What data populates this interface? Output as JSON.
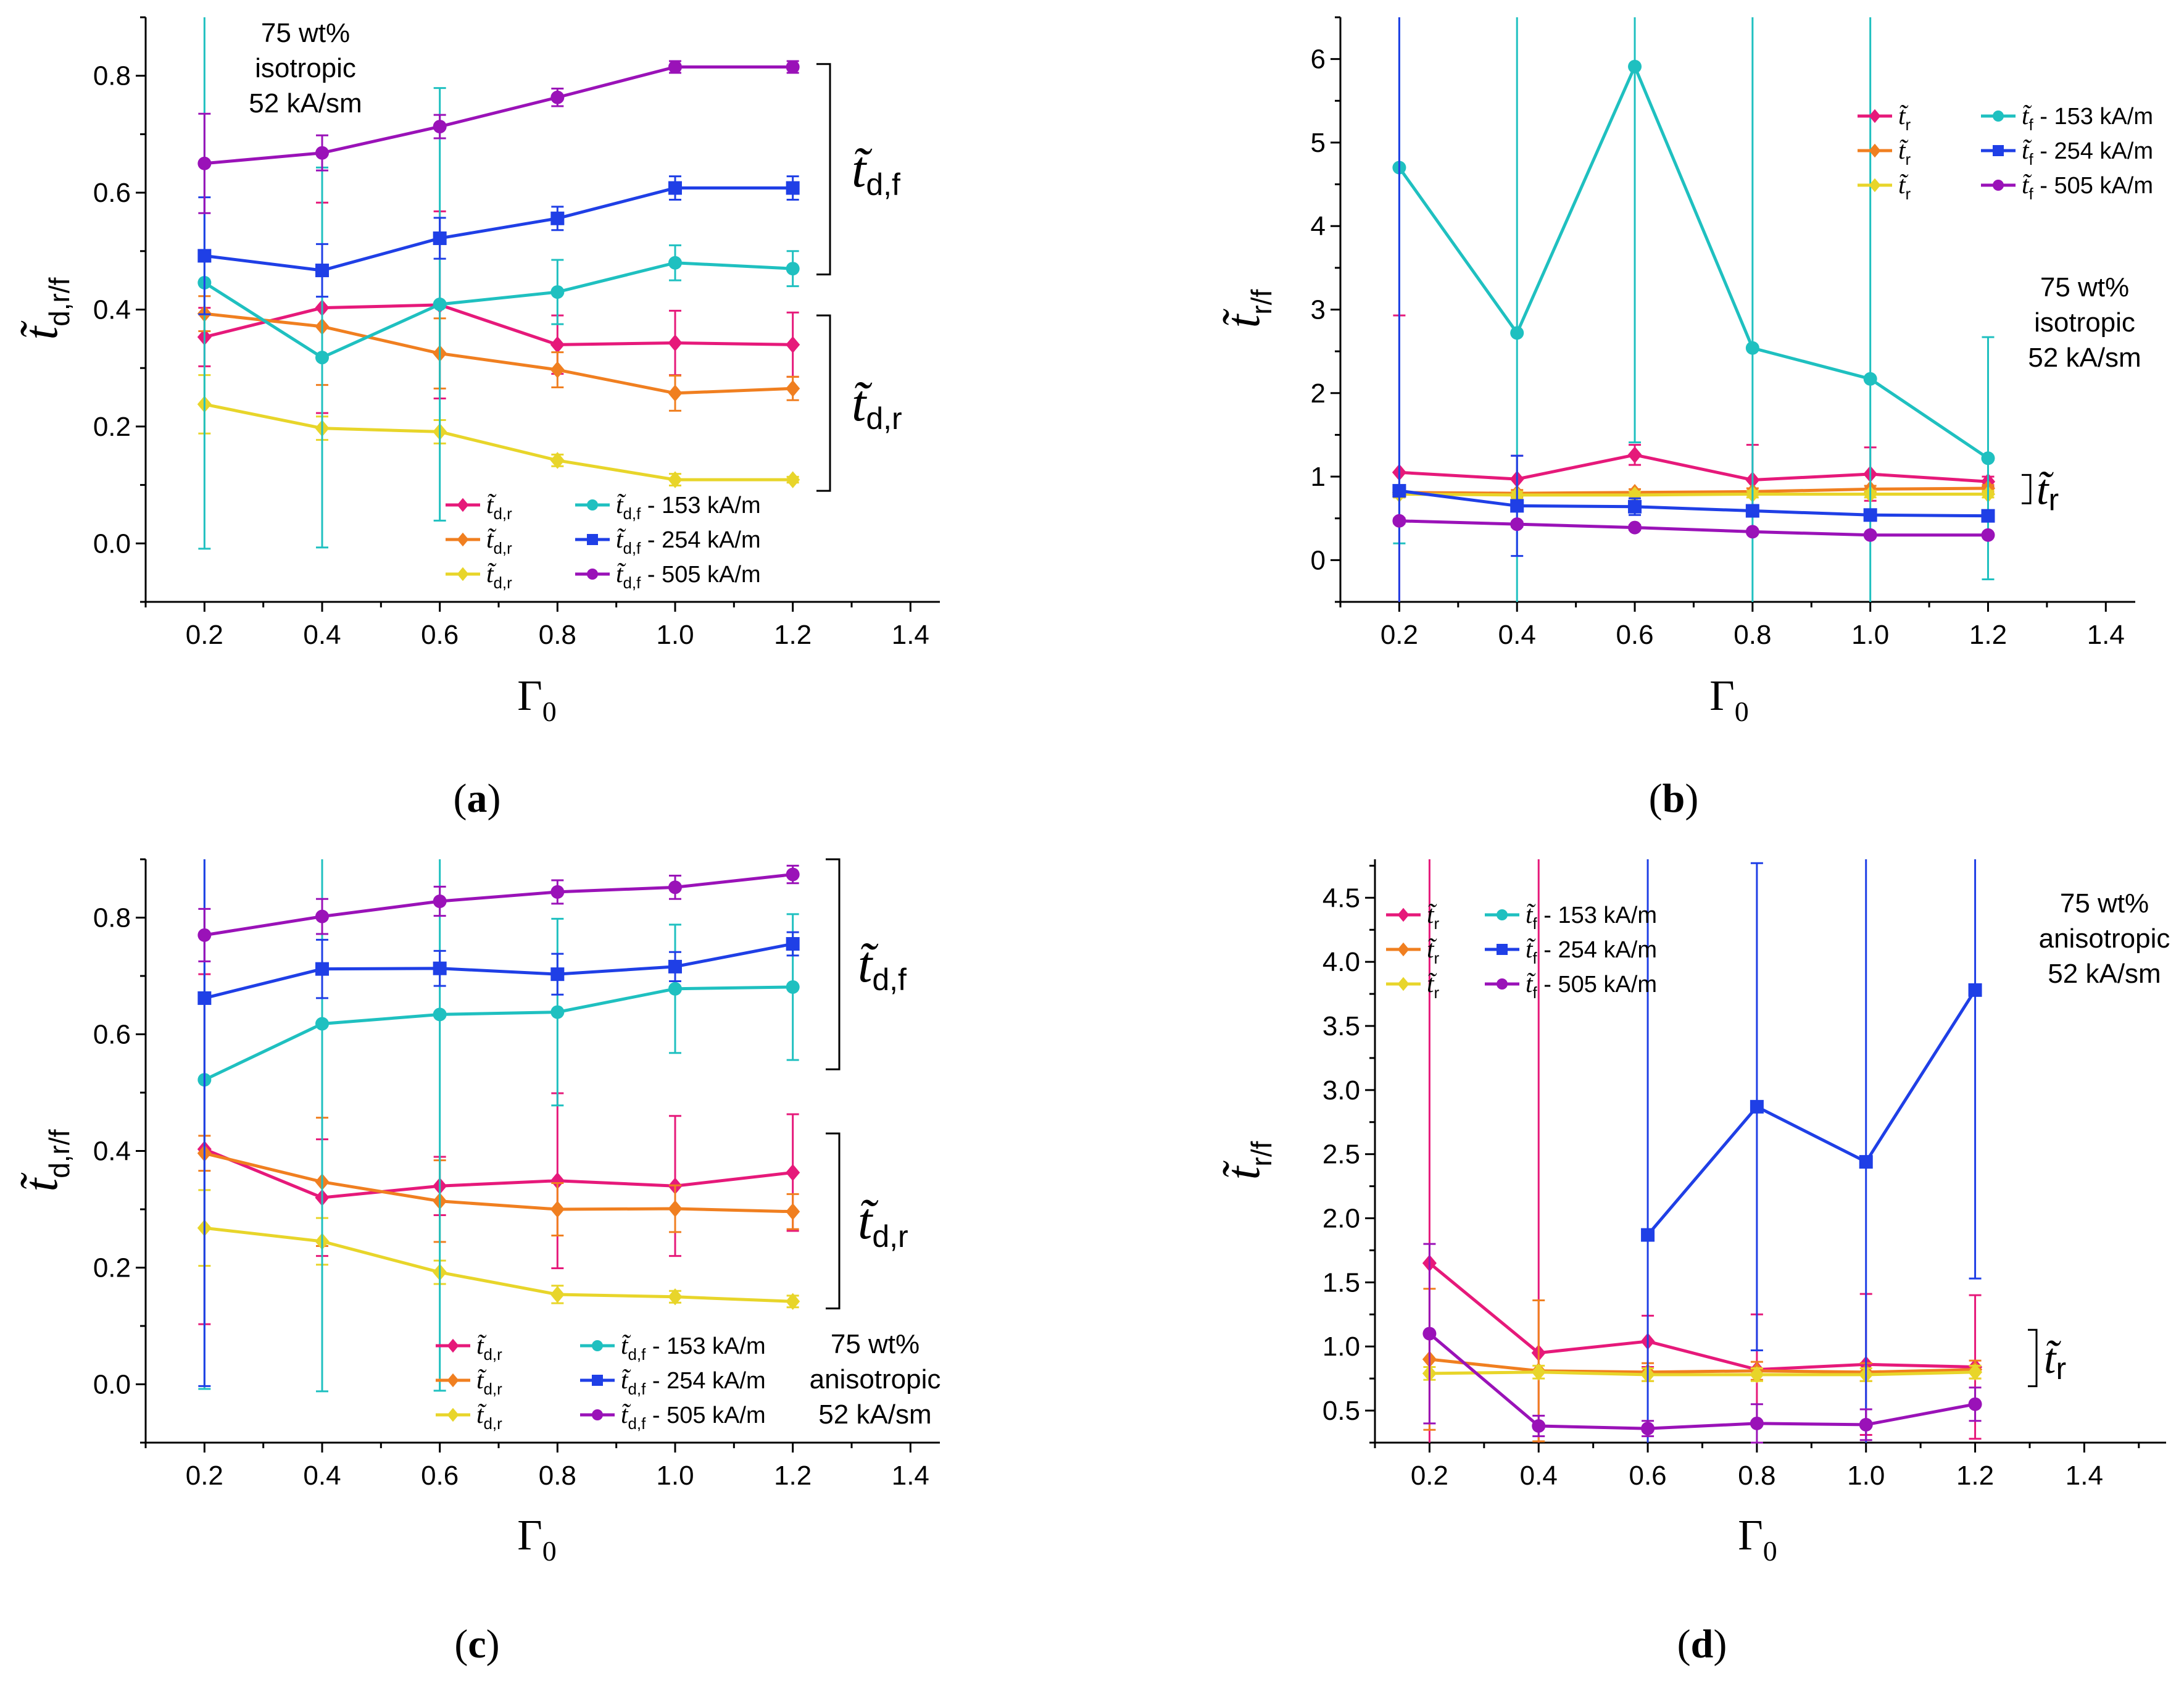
{
  "figure": {
    "panels": [
      "a",
      "b",
      "c",
      "d"
    ]
  },
  "chart_data": [
    {
      "id": "a",
      "type": "line",
      "label": "(a)",
      "xlabel": "Γ0",
      "ylabel": "t̃d,r/f",
      "xlim": [
        0.1,
        1.45
      ],
      "ylim": [
        -0.1,
        0.9
      ],
      "xticks": [
        0.2,
        0.4,
        0.6,
        0.8,
        1.0,
        1.2,
        1.4
      ],
      "xtick_labels": [
        "0.2",
        "0.4",
        "0.6",
        "0.8",
        "1.0",
        "1.2",
        "1.4"
      ],
      "yticks": [
        0.0,
        0.2,
        0.4,
        0.6,
        0.8
      ],
      "ytick_labels": [
        "0.0",
        "0.2",
        "0.4",
        "0.6",
        "0.8"
      ],
      "annotation": [
        "75 wt%",
        "isotropic",
        "52 kA/sm"
      ],
      "brackets": [
        {
          "label": "t̃d,f",
          "y_from": 0.46,
          "y_to": 0.82
        },
        {
          "label": "t̃d,r",
          "y_from": 0.09,
          "y_to": 0.39
        }
      ],
      "legend_position": "bottom-right",
      "x": [
        0.2,
        0.4,
        0.6,
        0.8,
        1.0,
        1.2
      ],
      "series": [
        {
          "name": "t̃d,r",
          "color": "#e6197a",
          "marker": "diamond",
          "values": [
            0.353,
            0.403,
            0.408,
            0.34,
            0.343,
            0.34
          ],
          "err": [
            0.05,
            0.18,
            0.16,
            0.05,
            0.055,
            0.055
          ]
        },
        {
          "name": "t̃d,r",
          "color": "#f07f20",
          "marker": "diamond",
          "values": [
            0.393,
            0.371,
            0.325,
            0.297,
            0.257,
            0.265
          ],
          "err": [
            0.03,
            0.1,
            0.06,
            0.03,
            0.03,
            0.02
          ]
        },
        {
          "name": "t̃d,r",
          "color": "#e8d52a",
          "marker": "diamond",
          "values": [
            0.238,
            0.197,
            0.191,
            0.142,
            0.109,
            0.109
          ],
          "err": [
            0.05,
            0.02,
            0.02,
            0.01,
            0.01,
            0.005
          ]
        },
        {
          "name": "t̃d,f - 153 kA/m",
          "color": "#1fc0c0",
          "marker": "circle",
          "values": [
            0.446,
            0.318,
            0.409,
            0.43,
            0.48,
            0.47
          ],
          "err": [
            0.455,
            0.325,
            0.37,
            0.055,
            0.03,
            0.03
          ]
        },
        {
          "name": "t̃d,f - 254 kA/m",
          "color": "#1f3fe6",
          "marker": "square",
          "values": [
            0.492,
            0.467,
            0.522,
            0.556,
            0.608,
            0.608
          ],
          "err": [
            0.1,
            0.045,
            0.035,
            0.02,
            0.02,
            0.02
          ]
        },
        {
          "name": "t̃d,f - 505 kA/m",
          "color": "#9a12b8",
          "marker": "circle",
          "values": [
            0.65,
            0.668,
            0.713,
            0.763,
            0.815,
            0.815
          ],
          "err": [
            0.085,
            0.03,
            0.02,
            0.015,
            0.01,
            0.01
          ]
        }
      ]
    },
    {
      "id": "b",
      "type": "line",
      "label": "(b)",
      "xlabel": "Γ0",
      "ylabel": "t̃r/f",
      "xlim": [
        0.1,
        1.45
      ],
      "ylim": [
        -0.5,
        6.5
      ],
      "xticks": [
        0.2,
        0.4,
        0.6,
        0.8,
        1.0,
        1.2,
        1.4
      ],
      "xtick_labels": [
        "0.2",
        "0.4",
        "0.6",
        "0.8",
        "1.0",
        "1.2",
        "1.4"
      ],
      "yticks": [
        0,
        1,
        2,
        3,
        4,
        5,
        6
      ],
      "ytick_labels": [
        "0",
        "1",
        "2",
        "3",
        "4",
        "5",
        "6"
      ],
      "annotation": [
        "75 wt%",
        "isotropic",
        "52 kA/sm"
      ],
      "brackets": [
        {
          "label": "t̃r",
          "y_from": 0.68,
          "y_to": 1.02
        }
      ],
      "legend_position": "top-right",
      "x": [
        0.2,
        0.4,
        0.6,
        0.8,
        1.0,
        1.2
      ],
      "series": [
        {
          "name": "t̃r",
          "color": "#e6197a",
          "marker": "diamond",
          "values": [
            1.05,
            0.97,
            1.26,
            0.96,
            1.03,
            0.94
          ],
          "err": [
            1.88,
            0.28,
            0.12,
            0.42,
            0.32,
            0.06
          ]
        },
        {
          "name": "t̃r",
          "color": "#f07f20",
          "marker": "diamond",
          "values": [
            0.81,
            0.8,
            0.81,
            0.82,
            0.85,
            0.86
          ],
          "err": [
            0.06,
            0.04,
            0.04,
            0.04,
            0.04,
            0.04
          ]
        },
        {
          "name": "t̃r",
          "color": "#e8d52a",
          "marker": "diamond",
          "values": [
            0.79,
            0.78,
            0.78,
            0.79,
            0.79,
            0.79
          ],
          "err": [
            0.04,
            0.04,
            0.04,
            0.04,
            0.04,
            0.04
          ]
        },
        {
          "name": "t̃f - 153 kA/m",
          "color": "#1fc0c0",
          "marker": "circle",
          "values": [
            4.7,
            2.72,
            5.91,
            2.54,
            2.17,
            1.22
          ],
          "err": [
            4.5,
            4.5,
            4.5,
            4.5,
            4.5,
            1.45
          ]
        },
        {
          "name": "t̃f - 254 kA/m",
          "color": "#1f3fe6",
          "marker": "square",
          "values": [
            0.83,
            0.65,
            0.64,
            0.59,
            0.54,
            0.53
          ],
          "err": [
            7.0,
            0.6,
            0.1,
            0.05,
            0.05,
            0.05
          ]
        },
        {
          "name": "t̃f - 505 kA/m",
          "color": "#9a12b8",
          "marker": "circle",
          "values": [
            0.47,
            0.43,
            0.39,
            0.34,
            0.3,
            0.3
          ],
          "err": [
            0.03,
            0.03,
            0.03,
            0.02,
            0.02,
            0.02
          ]
        }
      ]
    },
    {
      "id": "c",
      "type": "line",
      "label": "(c)",
      "xlabel": "Γ0",
      "ylabel": "t̃d,r/f",
      "xlim": [
        0.1,
        1.45
      ],
      "ylim": [
        -0.1,
        0.9
      ],
      "xticks": [
        0.2,
        0.4,
        0.6,
        0.8,
        1.0,
        1.2,
        1.4
      ],
      "xtick_labels": [
        "0.2",
        "0.4",
        "0.6",
        "0.8",
        "1.0",
        "1.2",
        "1.4"
      ],
      "yticks": [
        0.0,
        0.2,
        0.4,
        0.6,
        0.8
      ],
      "ytick_labels": [
        "0.0",
        "0.2",
        "0.4",
        "0.6",
        "0.8"
      ],
      "annotation": [
        "75 wt%",
        "anisotropic",
        "52 kA/sm"
      ],
      "brackets": [
        {
          "label": "t̃d,f",
          "y_from": 0.54,
          "y_to": 0.9
        },
        {
          "label": "t̃d,r",
          "y_from": 0.13,
          "y_to": 0.43
        }
      ],
      "legend_position": "bottom-right",
      "x": [
        0.2,
        0.4,
        0.6,
        0.8,
        1.0,
        1.2
      ],
      "series": [
        {
          "name": "t̃d,r",
          "color": "#e6197a",
          "marker": "diamond",
          "values": [
            0.403,
            0.32,
            0.34,
            0.349,
            0.34,
            0.363
          ],
          "err": [
            0.3,
            0.1,
            0.05,
            0.15,
            0.12,
            0.1
          ]
        },
        {
          "name": "t̃d,r",
          "color": "#f07f20",
          "marker": "diamond",
          "values": [
            0.396,
            0.347,
            0.314,
            0.3,
            0.301,
            0.296
          ],
          "err": [
            0.03,
            0.11,
            0.07,
            0.045,
            0.04,
            0.03
          ]
        },
        {
          "name": "t̃d,r",
          "color": "#e8d52a",
          "marker": "diamond",
          "values": [
            0.268,
            0.245,
            0.192,
            0.154,
            0.15,
            0.142
          ],
          "err": [
            0.065,
            0.04,
            0.02,
            0.015,
            0.01,
            0.01
          ]
        },
        {
          "name": "t̃d,f - 153 kA/m",
          "color": "#1fc0c0",
          "marker": "circle",
          "values": [
            0.522,
            0.618,
            0.634,
            0.638,
            0.678,
            0.681
          ],
          "err": [
            0.53,
            0.63,
            0.645,
            0.16,
            0.11,
            0.125
          ]
        },
        {
          "name": "t̃d,f - 254 kA/m",
          "color": "#1f3fe6",
          "marker": "square",
          "values": [
            0.662,
            0.712,
            0.713,
            0.703,
            0.716,
            0.755
          ],
          "err": [
            0.665,
            0.05,
            0.03,
            0.035,
            0.025,
            0.02
          ]
        },
        {
          "name": "t̃d,f - 505 kA/m",
          "color": "#9a12b8",
          "marker": "circle",
          "values": [
            0.77,
            0.802,
            0.828,
            0.844,
            0.852,
            0.874
          ],
          "err": [
            0.045,
            0.03,
            0.025,
            0.02,
            0.02,
            0.015
          ]
        }
      ]
    },
    {
      "id": "d",
      "type": "line",
      "label": "(d)",
      "xlabel": "Γ0",
      "ylabel": "t̃r/f",
      "xlim": [
        0.1,
        1.55
      ],
      "ylim": [
        0.25,
        4.8
      ],
      "xticks": [
        0.2,
        0.4,
        0.6,
        0.8,
        1.0,
        1.2,
        1.4
      ],
      "xtick_labels": [
        "0.2",
        "0.4",
        "0.6",
        "0.8",
        "1.0",
        "1.2",
        "1.4"
      ],
      "yticks": [
        0.5,
        1.0,
        1.5,
        2.0,
        2.5,
        3.0,
        3.5,
        4.0,
        4.5
      ],
      "ytick_labels": [
        "0.5",
        "1.0",
        "1.5",
        "2.0",
        "2.5",
        "3.0",
        "3.5",
        "4.0",
        "4.5"
      ],
      "annotation": [
        "75 wt%",
        "anisotropic",
        "52 kA/sm"
      ],
      "brackets": [
        {
          "label": "t̃r",
          "y_from": 0.69,
          "y_to": 1.13
        }
      ],
      "legend_position": "top-left",
      "x": [
        0.2,
        0.4,
        0.6,
        0.8,
        1.0,
        1.2
      ],
      "series": [
        {
          "name": "t̃r",
          "color": "#e6197a",
          "marker": "diamond",
          "values": [
            1.65,
            0.95,
            1.04,
            0.82,
            0.86,
            0.84
          ],
          "err": [
            4.0,
            4.0,
            0.2,
            0.43,
            0.55,
            0.56
          ]
        },
        {
          "name": "t̃r",
          "color": "#f07f20",
          "marker": "diamond",
          "values": [
            0.9,
            0.81,
            0.8,
            0.81,
            0.8,
            0.82
          ],
          "err": [
            0.55,
            0.55,
            0.07,
            0.07,
            0.07,
            0.07
          ]
        },
        {
          "name": "t̃r",
          "color": "#e8d52a",
          "marker": "diamond",
          "values": [
            0.79,
            0.8,
            0.78,
            0.78,
            0.78,
            0.8
          ],
          "err": [
            0.05,
            0.05,
            0.05,
            0.05,
            0.05,
            0.05
          ]
        },
        {
          "name": "t̃f - 153 kA/m",
          "color": "#1fc0c0",
          "marker": "circle",
          "values": [
            null,
            null,
            null,
            null,
            null,
            null
          ],
          "err": [
            0,
            0,
            0,
            0,
            0,
            0
          ]
        },
        {
          "name": "t̃f - 254 kA/m",
          "color": "#1f3fe6",
          "marker": "square",
          "values": [
            null,
            null,
            1.87,
            2.87,
            2.44,
            3.78
          ],
          "err": [
            0,
            0,
            3.0,
            1.9,
            2.4,
            2.25
          ]
        },
        {
          "name": "t̃f - 505 kA/m",
          "color": "#9a12b8",
          "marker": "circle",
          "values": [
            1.1,
            0.38,
            0.36,
            0.4,
            0.39,
            0.55
          ],
          "err": [
            0.7,
            0.08,
            0.06,
            0.15,
            0.12,
            0.13
          ]
        }
      ]
    }
  ]
}
